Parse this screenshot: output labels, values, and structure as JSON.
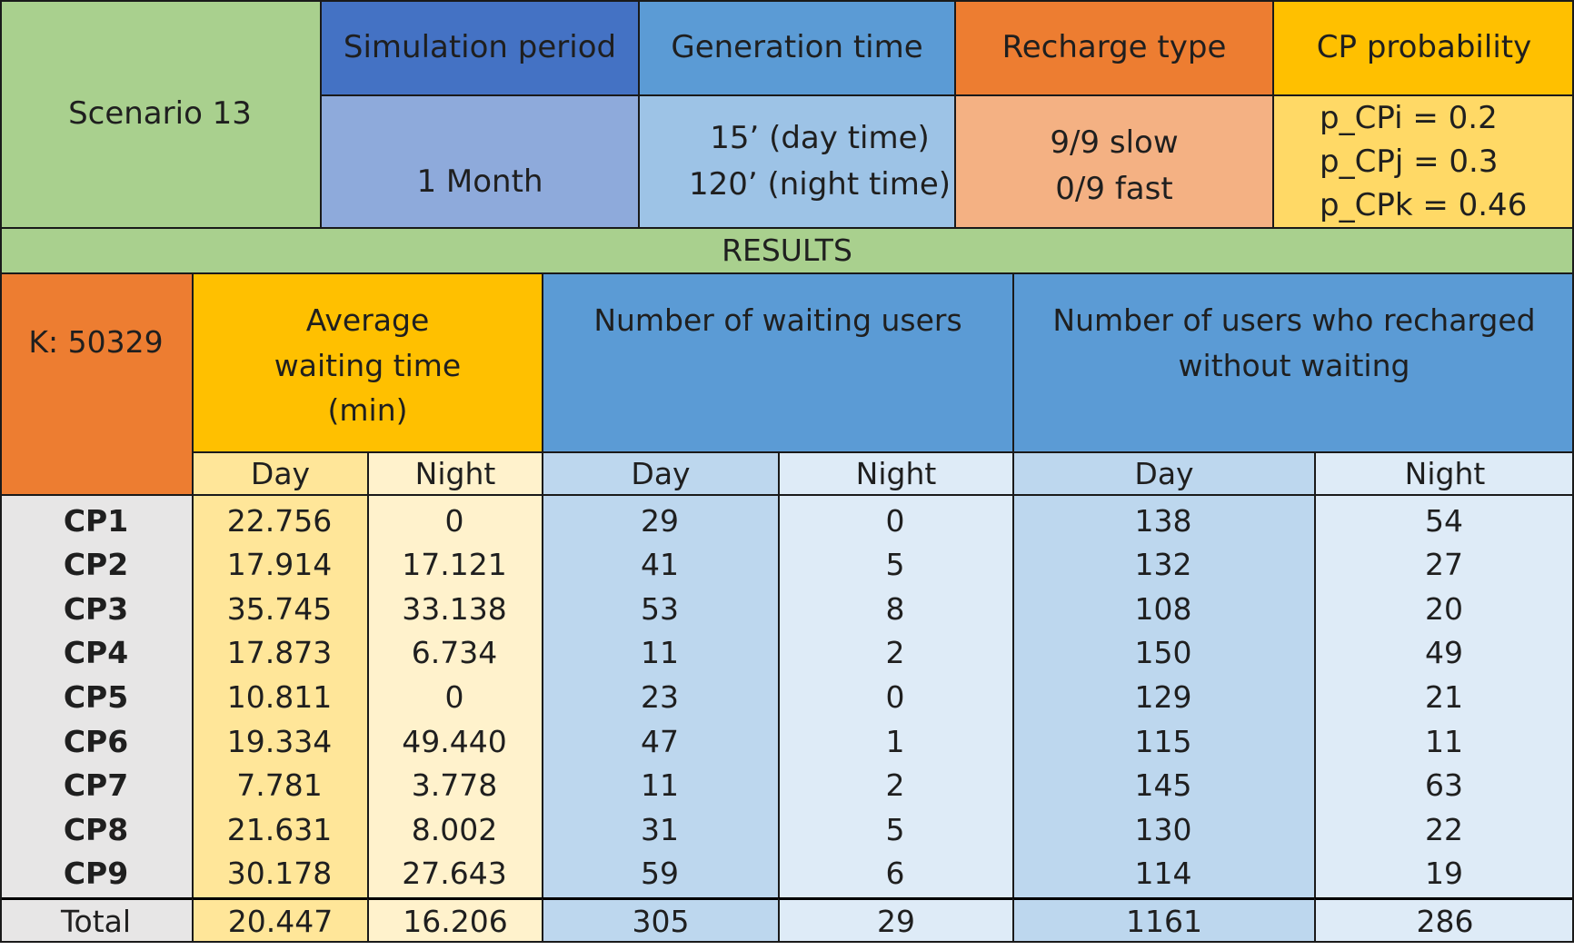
{
  "scenario": {
    "label": "Scenario 13",
    "headers": {
      "simulation_period": "Simulation period",
      "generation_time": "Generation time",
      "recharge_type": "Recharge type",
      "cp_probability": "CP probability"
    },
    "values": {
      "simulation_period": "1 Month",
      "generation_time": [
        "15’ (day time)",
        "120’ (night time)"
      ],
      "recharge_type": [
        "9/9 slow",
        "0/9 fast"
      ],
      "cp_probability": [
        "p_CPi = 0.2",
        "p_CPj = 0.3",
        "p_CPk = 0.46"
      ]
    }
  },
  "results": {
    "title": "RESULTS",
    "k_label": "K: 50329",
    "headers": {
      "avg_wait": "Average waiting time (min)",
      "waiting_users": "Number of waiting users",
      "no_wait_users": "Number of users who recharged without waiting"
    },
    "sub_headers": {
      "day": "Day",
      "night": "Night"
    },
    "rows": [
      {
        "cp": "CP1",
        "avg_day": "22.756",
        "avg_night": "0",
        "wait_day": "29",
        "wait_night": "0",
        "nowait_day": "138",
        "nowait_night": "54"
      },
      {
        "cp": "CP2",
        "avg_day": "17.914",
        "avg_night": "17.121",
        "wait_day": "41",
        "wait_night": "5",
        "nowait_day": "132",
        "nowait_night": "27"
      },
      {
        "cp": "CP3",
        "avg_day": "35.745",
        "avg_night": "33.138",
        "wait_day": "53",
        "wait_night": "8",
        "nowait_day": "108",
        "nowait_night": "20"
      },
      {
        "cp": "CP4",
        "avg_day": "17.873",
        "avg_night": "6.734",
        "wait_day": "11",
        "wait_night": "2",
        "nowait_day": "150",
        "nowait_night": "49"
      },
      {
        "cp": "CP5",
        "avg_day": "10.811",
        "avg_night": "0",
        "wait_day": "23",
        "wait_night": "0",
        "nowait_day": "129",
        "nowait_night": "21"
      },
      {
        "cp": "CP6",
        "avg_day": "19.334",
        "avg_night": "49.440",
        "wait_day": "47",
        "wait_night": "1",
        "nowait_day": "115",
        "nowait_night": "11"
      },
      {
        "cp": "CP7",
        "avg_day": "7.781",
        "avg_night": "3.778",
        "wait_day": "11",
        "wait_night": "2",
        "nowait_day": "145",
        "nowait_night": "63"
      },
      {
        "cp": "CP8",
        "avg_day": "21.631",
        "avg_night": "8.002",
        "wait_day": "31",
        "wait_night": "5",
        "nowait_day": "130",
        "nowait_night": "22"
      },
      {
        "cp": "CP9",
        "avg_day": "30.178",
        "avg_night": "27.643",
        "wait_day": "59",
        "wait_night": "6",
        "nowait_day": "114",
        "nowait_night": "19"
      }
    ],
    "total": {
      "cp": "Total",
      "avg_day": "20.447",
      "avg_night": "16.206",
      "wait_day": "305",
      "wait_night": "29",
      "nowait_day": "1161",
      "nowait_night": "286"
    }
  },
  "colors": {
    "green": "#a9d08e",
    "dark_blue": "#4472c4",
    "mid_blue": "#5b9bd5",
    "orange": "#ed7d31",
    "amber": "#ffc000",
    "light_indigo": "#8eaadb",
    "light_blue": "#9dc3e6",
    "peach": "#f4b183",
    "light_gold": "#ffd966",
    "gray": "#e7e6e6",
    "cream_day": "#ffe699",
    "cream_night": "#fff2cc",
    "blue_day": "#bdd7ee",
    "blue_night": "#deebf7"
  }
}
